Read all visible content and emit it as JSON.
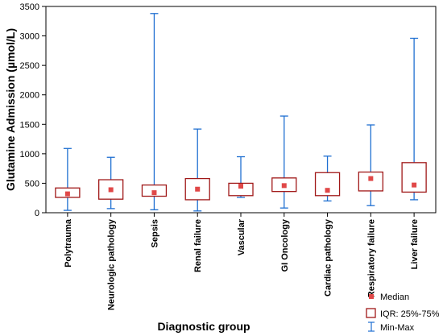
{
  "colors": {
    "whisker": "#1f6fd1",
    "box": "#a01818",
    "median": "#e04848",
    "axis": "#000000",
    "plot_bg": "#ffffff"
  },
  "chart_data": {
    "type": "boxplot",
    "title": "",
    "xlabel": "Diagnostic group",
    "ylabel": "Glutamine Admission (µmol/L)",
    "ylim": [
      0,
      3500
    ],
    "yticks": [
      0,
      500,
      1000,
      1500,
      2000,
      2500,
      3000,
      3500
    ],
    "grid": false,
    "legend_position": "bottom-right",
    "legend": {
      "median": "Median",
      "iqr": "IQR: 25%-75%",
      "range": "Min-Max"
    },
    "categories": [
      "Polytrauma",
      "Neurologic pathology",
      "Sepsis",
      "Renal failure",
      "Vascular",
      "GI Oncology",
      "Cardiac pathology",
      "Respiratory failure",
      "Liver failure"
    ],
    "series": [
      {
        "min": 40,
        "q1": 260,
        "median": 320,
        "q3": 420,
        "max": 1090
      },
      {
        "min": 70,
        "q1": 230,
        "median": 390,
        "q3": 560,
        "max": 940
      },
      {
        "min": 50,
        "q1": 280,
        "median": 340,
        "q3": 470,
        "max": 3380
      },
      {
        "min": 30,
        "q1": 220,
        "median": 400,
        "q3": 580,
        "max": 1420
      },
      {
        "min": 260,
        "q1": 290,
        "median": 450,
        "q3": 500,
        "max": 950
      },
      {
        "min": 80,
        "q1": 360,
        "median": 460,
        "q3": 590,
        "max": 1640
      },
      {
        "min": 200,
        "q1": 290,
        "median": 380,
        "q3": 680,
        "max": 960
      },
      {
        "min": 120,
        "q1": 370,
        "median": 580,
        "q3": 690,
        "max": 1490
      },
      {
        "min": 220,
        "q1": 350,
        "median": 470,
        "q3": 850,
        "max": 2960
      }
    ]
  }
}
